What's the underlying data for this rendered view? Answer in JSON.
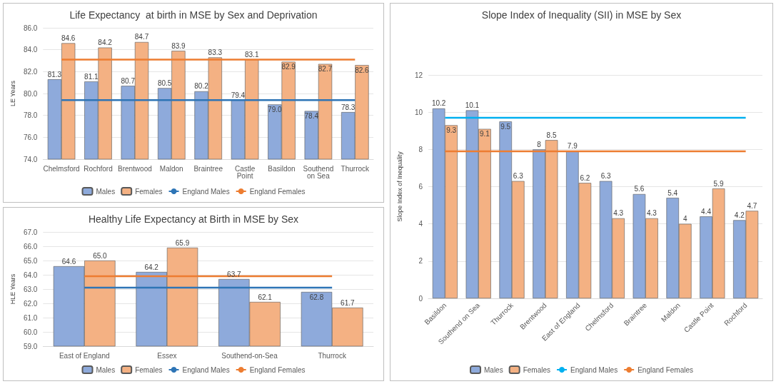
{
  "chart_data": [
    {
      "type": "bar",
      "title": "Life Expectancy  at birth in MSE by Sex and Deprivation",
      "ylabel": "LE Years",
      "categories": [
        "Chelmsford",
        "Rochford",
        "Brentwood",
        "Maldon",
        "Braintree",
        "Castle\nPoint",
        "Basildon",
        "Southend\non Sea",
        "Thurrock"
      ],
      "ylim": [
        74,
        86
      ],
      "yticks": [
        {
          "value": 74,
          "label": "74.0"
        },
        {
          "value": 76,
          "label": "76.0"
        },
        {
          "value": 78,
          "label": "78.0"
        },
        {
          "value": 80,
          "label": "80.0"
        },
        {
          "value": 82,
          "label": "82.0"
        },
        {
          "value": 84,
          "label": "84.0"
        },
        {
          "value": 86,
          "label": "86.0"
        }
      ],
      "grid": "y",
      "legend": "bottom",
      "marker": "none",
      "series": [
        {
          "name": "Males",
          "color": "#8eaadb",
          "values": [
            81.3,
            81.1,
            80.7,
            80.5,
            80.2,
            79.4,
            79.0,
            78.4,
            78.3
          ],
          "value_labels": [
            "81.3",
            "81.1",
            "80.7",
            "80.5",
            "80.2",
            "79.4",
            "79.0",
            "78.4",
            "78.3"
          ]
        },
        {
          "name": "Females",
          "color": "#f4b183",
          "values": [
            84.6,
            84.2,
            84.7,
            83.9,
            83.3,
            83.1,
            82.9,
            82.7,
            82.6
          ],
          "value_labels": [
            "84.6",
            "84.2",
            "84.7",
            "83.9",
            "83.3",
            "83.1",
            "82.9",
            "82.7",
            "82.6"
          ]
        },
        {
          "name": "England Males",
          "type": "line",
          "color": "#2e75b6",
          "values": [
            79.4,
            79.4,
            79.4,
            79.4,
            79.4,
            79.4,
            79.4,
            79.4,
            79.4
          ]
        },
        {
          "name": "England Females",
          "type": "line",
          "color": "#ed7d31",
          "values": [
            83.1,
            83.1,
            83.1,
            83.1,
            83.1,
            83.1,
            83.1,
            83.1,
            83.1
          ]
        }
      ]
    },
    {
      "type": "bar",
      "title": "Healthy Life Expectancy at Birth in MSE by Sex",
      "ylabel": "HLE Years",
      "categories": [
        "East of England",
        "Essex",
        "Southend-on-Sea",
        "Thurrock"
      ],
      "ylim": [
        59,
        67
      ],
      "yticks": [
        {
          "value": 59,
          "label": "59.0"
        },
        {
          "value": 60,
          "label": "60.0"
        },
        {
          "value": 61,
          "label": "61.0"
        },
        {
          "value": 62,
          "label": "62.0"
        },
        {
          "value": 63,
          "label": "63.0"
        },
        {
          "value": 64,
          "label": "64.0"
        },
        {
          "value": 65,
          "label": "65.0"
        },
        {
          "value": 66,
          "label": "66.0"
        },
        {
          "value": 67,
          "label": "67.0"
        }
      ],
      "grid": "y",
      "legend": "bottom",
      "marker": "none",
      "series": [
        {
          "name": "Males",
          "color": "#8eaadb",
          "values": [
            64.6,
            64.2,
            63.7,
            62.8
          ],
          "value_labels": [
            "64.6",
            "64.2",
            "63.7",
            "62.8"
          ]
        },
        {
          "name": "Females",
          "color": "#f4b183",
          "values": [
            65.0,
            65.9,
            62.1,
            61.7
          ],
          "value_labels": [
            "65.0",
            "65.9",
            "62.1",
            "61.7"
          ]
        },
        {
          "name": "England Males",
          "type": "line",
          "color": "#2e75b6",
          "values": [
            63.1,
            63.1,
            63.1,
            63.1
          ]
        },
        {
          "name": "England Females",
          "type": "line",
          "color": "#ed7d31",
          "values": [
            63.9,
            63.9,
            63.9,
            63.9
          ]
        }
      ]
    },
    {
      "type": "bar",
      "title": "Slope Index of Inequality (SII) in MSE by Sex",
      "ylabel": "Slope Index of Inequality",
      "categories": [
        "Basildon",
        "Southend on Sea",
        "Thurrock",
        "Brentwood",
        "East of England",
        "Chelmsford",
        "Braintree",
        "Maldon",
        "Castle Point",
        "Rochford"
      ],
      "ylim": [
        0,
        12
      ],
      "yticks": [
        0,
        2,
        4,
        6,
        8,
        10,
        12
      ],
      "grid": "y",
      "legend": "bottom",
      "marker": "none",
      "series": [
        {
          "name": "Males",
          "color": "#8eaadb",
          "values": [
            10.2,
            10.1,
            9.5,
            8,
            7.9,
            6.3,
            5.6,
            5.4,
            4.4,
            4.2
          ],
          "value_labels": [
            "10.2",
            "10.1",
            "9.5",
            "8",
            "7.9",
            "6.3",
            "5.6",
            "5.4",
            "4.4",
            "4.2"
          ]
        },
        {
          "name": "Females",
          "color": "#f4b183",
          "values": [
            9.3,
            9.1,
            6.3,
            8.5,
            6.2,
            4.3,
            4.3,
            4,
            5.9,
            4.7
          ],
          "value_labels": [
            "9.3",
            "9.1",
            "6.3",
            "8.5",
            "6.2",
            "4.3",
            "4.3",
            "4",
            "5.9",
            "4.7"
          ]
        },
        {
          "name": "England Males",
          "type": "line",
          "color": "#00b0f0",
          "values": [
            9.7,
            9.7,
            9.7,
            9.7,
            9.7,
            9.7,
            9.7,
            9.7,
            9.7,
            9.7
          ]
        },
        {
          "name": "England Females",
          "type": "line",
          "color": "#ed7d31",
          "values": [
            7.9,
            7.9,
            7.9,
            7.9,
            7.9,
            7.9,
            7.9,
            7.9,
            7.9,
            7.9
          ]
        }
      ]
    }
  ]
}
